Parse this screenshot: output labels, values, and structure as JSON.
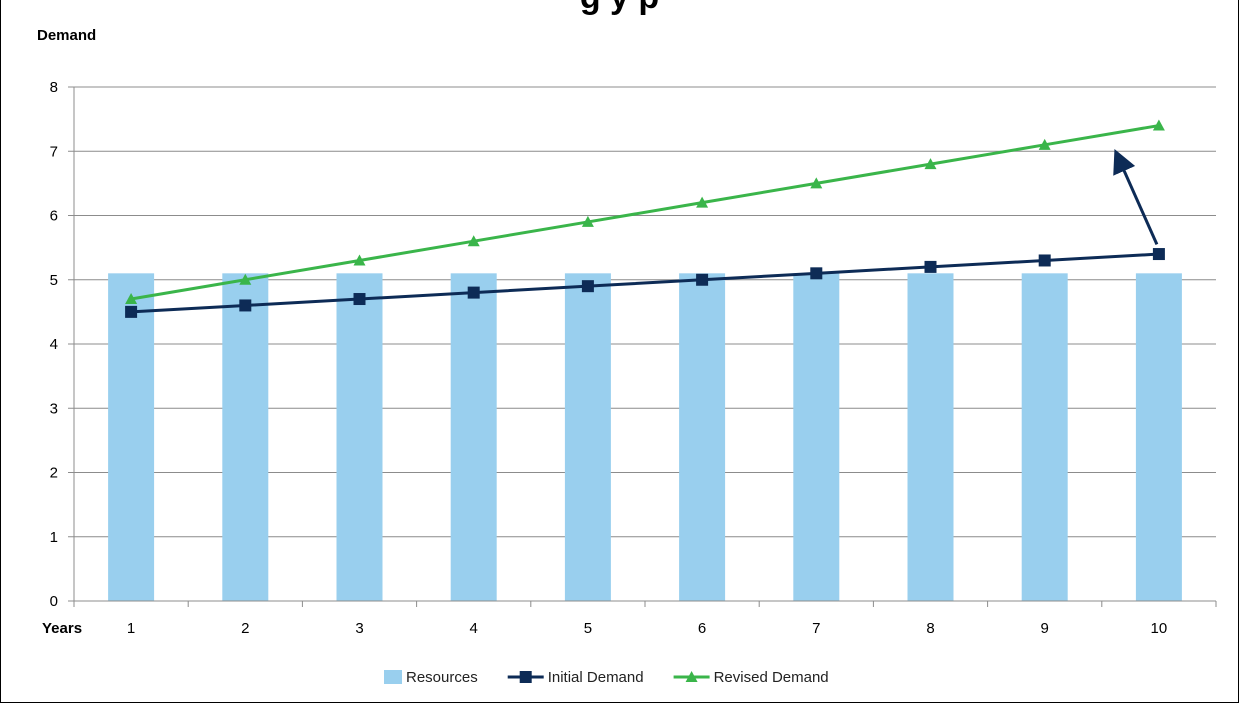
{
  "page": {
    "title": "g    y    p"
  },
  "chart_data": {
    "type": "bar",
    "title": "",
    "ylabel": "Demand",
    "xlabel": "Years",
    "categories": [
      "1",
      "2",
      "3",
      "4",
      "5",
      "6",
      "7",
      "8",
      "9",
      "10"
    ],
    "ylim": [
      0,
      8
    ],
    "yticks": [
      0,
      1,
      2,
      3,
      4,
      5,
      6,
      7,
      8
    ],
    "grid": true,
    "legend_position": "bottom",
    "series": [
      {
        "name": "Resources",
        "kind": "bar",
        "marker": "none",
        "color": "#99cfee",
        "values": [
          5.1,
          5.1,
          5.1,
          5.1,
          5.1,
          5.1,
          5.1,
          5.1,
          5.1,
          5.1
        ]
      },
      {
        "name": "Initial Demand",
        "kind": "line",
        "marker": "square",
        "color": "#0d2b56",
        "values": [
          4.5,
          4.6,
          4.7,
          4.8,
          4.9,
          5.0,
          5.1,
          5.2,
          5.3,
          5.4
        ]
      },
      {
        "name": "Revised Demand",
        "kind": "line",
        "marker": "triangle",
        "color": "#3ab54a",
        "values": [
          4.7,
          5.0,
          5.3,
          5.6,
          5.9,
          6.2,
          6.5,
          6.8,
          7.1,
          7.4
        ]
      }
    ],
    "annotation": {
      "kind": "arrow",
      "from": {
        "category": "10",
        "y": 5.55
      },
      "to": {
        "category": "10",
        "y": 6.95
      },
      "color": "#0d2b56"
    }
  }
}
